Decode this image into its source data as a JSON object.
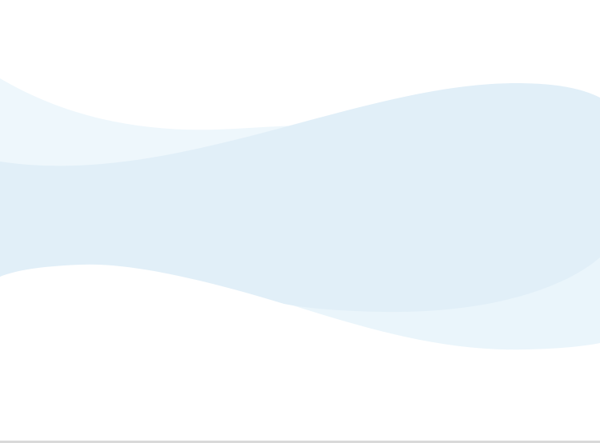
{
  "background": {
    "page_color": "#ffffff",
    "wave_colors": {
      "back_upper": "#eef7fc",
      "back_lower": "#eaf5fb",
      "main_band": "#e1eff8"
    },
    "border_color": "#d9d9d9"
  }
}
